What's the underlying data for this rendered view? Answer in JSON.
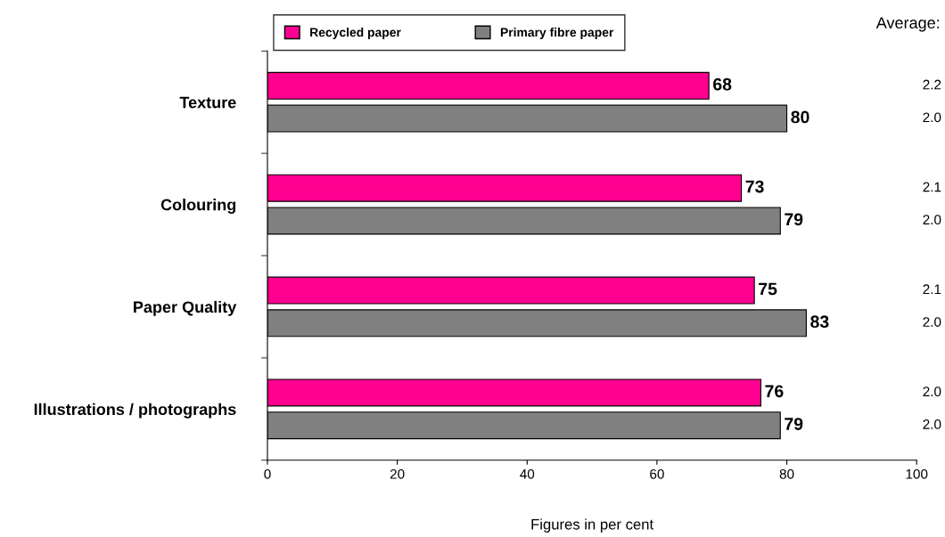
{
  "chart_data": {
    "type": "bar",
    "orientation": "horizontal",
    "xlabel": "Figures in per cent",
    "categories": [
      "Texture",
      "Colouring",
      "Paper Quality",
      "Illustrations / photographs"
    ],
    "series": [
      {
        "name": "Recycled paper",
        "color": "#ff0090",
        "values": [
          68,
          73,
          75,
          76
        ]
      },
      {
        "name": "Primary fibre paper",
        "color": "#808080",
        "values": [
          80,
          79,
          83,
          79
        ]
      }
    ],
    "xlim": [
      0,
      100
    ],
    "xticks": [
      0,
      20,
      40,
      60,
      80,
      100
    ],
    "grid": false,
    "legend": "top",
    "data_labels": true,
    "annotations": [
      "Average:",
      "2.2",
      "2.0",
      "2.1",
      "2.0",
      "2.1",
      "2.0",
      "2.0",
      "2.0"
    ]
  }
}
